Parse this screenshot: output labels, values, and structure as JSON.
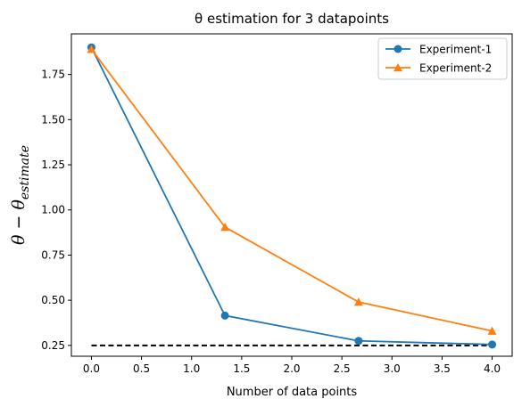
{
  "chart_data": {
    "type": "line",
    "title": "θ estimation for 3 datapoints",
    "xlabel": "Number of data points",
    "ylabel": "θ − θestimate",
    "xlim": [
      -0.2,
      4.2
    ],
    "ylim": [
      0.19,
      1.975
    ],
    "xticks": [
      "0.0",
      "0.5",
      "1.0",
      "1.5",
      "2.0",
      "2.5",
      "3.0",
      "3.5",
      "4.0"
    ],
    "yticks": [
      "0.25",
      "0.50",
      "0.75",
      "1.00",
      "1.25",
      "1.50",
      "1.75"
    ],
    "grid": false,
    "legend_position": "top-right",
    "series": [
      {
        "name": "Experiment-1",
        "color": "#1f77b4",
        "marker": "circle",
        "x": [
          0.0,
          1.333,
          2.667,
          4.0
        ],
        "y": [
          1.9,
          0.415,
          0.275,
          0.255
        ]
      },
      {
        "name": "Experiment-2",
        "color": "#ff7f0e",
        "marker": "triangle",
        "x": [
          0.0,
          1.333,
          2.667,
          4.0
        ],
        "y": [
          1.89,
          0.905,
          0.49,
          0.33
        ]
      }
    ],
    "reference_line": {
      "style": "dashed",
      "color": "#000000",
      "x": [
        0.0,
        4.0
      ],
      "y": [
        0.25,
        0.25
      ]
    }
  }
}
